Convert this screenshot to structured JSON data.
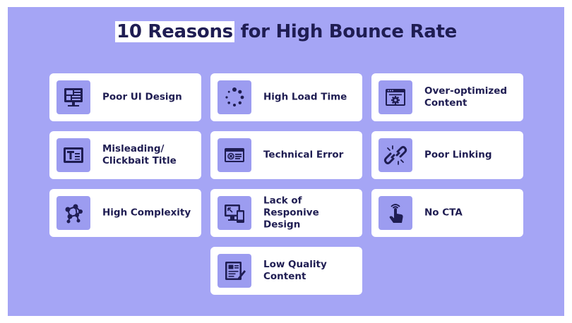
{
  "title": {
    "highlight": "10 Reasons",
    "rest": " for High Bounce Rate"
  },
  "colors": {
    "background": "#a5a5f5",
    "card": "#ffffff",
    "icon_bg": "#9c9cf0",
    "text": "#1f1d52"
  },
  "cards": [
    {
      "label": "Poor UI Design",
      "icon": "ui-layout-icon"
    },
    {
      "label": "High Load Time",
      "icon": "loading-spinner-icon"
    },
    {
      "label": "Over-optimized\nContent",
      "icon": "browser-gear-icon"
    },
    {
      "label": "Misleading/\nClickbait Title",
      "icon": "title-text-icon"
    },
    {
      "label": "Technical Error",
      "icon": "error-window-icon"
    },
    {
      "label": "Poor Linking",
      "icon": "broken-link-icon"
    },
    {
      "label": "High Complexity",
      "icon": "network-nodes-icon"
    },
    {
      "label": "Lack of Responive\nDesign",
      "icon": "responsive-devices-icon"
    },
    {
      "label": "No CTA",
      "icon": "tap-hand-icon"
    },
    {
      "label": "Low Quality\nContent",
      "icon": "document-edit-icon"
    }
  ]
}
